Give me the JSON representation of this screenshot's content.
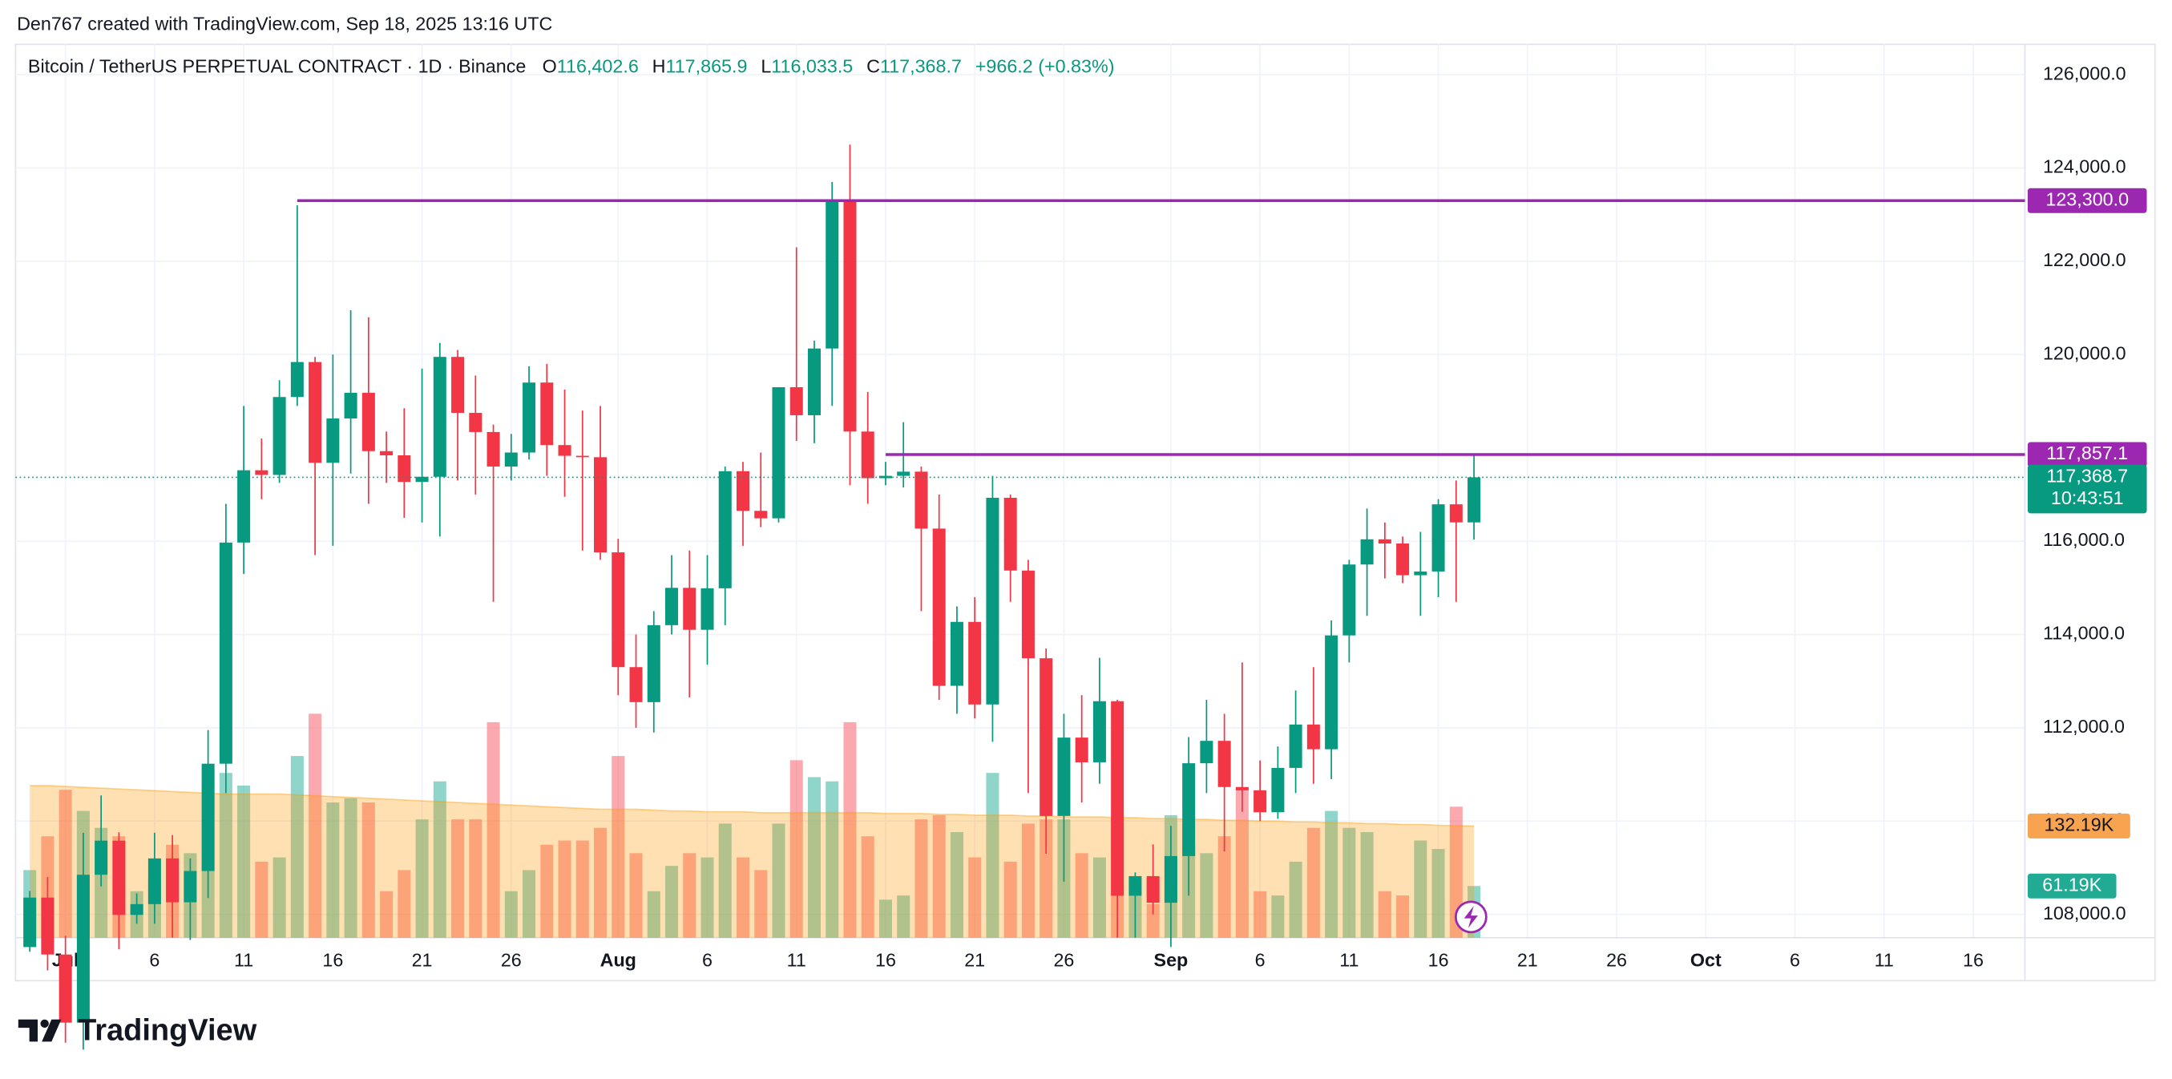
{
  "header": {
    "caption": "Den767 created with TradingView.com, Sep 18, 2025 13:16 UTC"
  },
  "legend": {
    "symbol": "Bitcoin / TetherUS PERPETUAL CONTRACT · 1D · Binance",
    "items": [
      {
        "key": "O",
        "value": "116,402.6"
      },
      {
        "key": "H",
        "value": "117,865.9"
      },
      {
        "key": "L",
        "value": "116,033.5"
      },
      {
        "key": "C",
        "value": "117,368.7"
      }
    ],
    "change": "+966.2 (+0.83%)"
  },
  "footer": {
    "brand": "TradingView"
  },
  "chart_data": {
    "type": "candlestick",
    "up_color": "#089981",
    "down_color": "#f23645",
    "x": [
      -1,
      0,
      1,
      2,
      3,
      4,
      5,
      6,
      7,
      8,
      9,
      10,
      11,
      12,
      13,
      14,
      15,
      16,
      17,
      18,
      19,
      20,
      21,
      22,
      23,
      24,
      25,
      26,
      27,
      28,
      29,
      30,
      31,
      32,
      33,
      34,
      35,
      36,
      37,
      38,
      39,
      40,
      41,
      42,
      43,
      44,
      45,
      46,
      47,
      48,
      49,
      50,
      51,
      52,
      53,
      54,
      55,
      56,
      57,
      58,
      59,
      60,
      61,
      62,
      63,
      64,
      65,
      66,
      67,
      68,
      69,
      70,
      71,
      72,
      73,
      74,
      75,
      76,
      77,
      78,
      79,
      80
    ],
    "open": [
      107300,
      108360,
      107140,
      105680,
      108850,
      109580,
      107990,
      108220,
      109200,
      108260,
      108930,
      111230,
      115970,
      117520,
      117420,
      119090,
      119840,
      117680,
      118630,
      119180,
      117930,
      117840,
      117270,
      117380,
      119950,
      118750,
      118340,
      117600,
      117900,
      119400,
      118060,
      117830,
      117800,
      115760,
      113300,
      112550,
      114200,
      115000,
      114100,
      114990,
      117500,
      116650,
      116490,
      119300,
      118700,
      120130,
      123300,
      118350,
      117350,
      117400,
      117490,
      116270,
      112900,
      114270,
      112500,
      116930,
      115370,
      113490,
      110110,
      111790,
      111260,
      112570,
      108400,
      108820,
      108250,
      109250,
      111240,
      111720,
      110730,
      110660,
      110190,
      111140,
      112070,
      111540,
      113980,
      115500,
      116040,
      115950,
      115270,
      115350,
      116790,
      116402.6
    ],
    "high": [
      108500,
      108800,
      107540,
      109750,
      110550,
      109760,
      108450,
      109750,
      109700,
      109200,
      111950,
      116800,
      118900,
      118200,
      119450,
      123200,
      119950,
      120000,
      120950,
      120800,
      118350,
      118850,
      119700,
      120250,
      120100,
      119550,
      118500,
      118300,
      119750,
      119800,
      119250,
      118800,
      118900,
      116050,
      114000,
      114500,
      115700,
      115800,
      115700,
      117600,
      117700,
      117900,
      119300,
      122300,
      120300,
      123700,
      124500,
      119200,
      117700,
      118550,
      117600,
      117000,
      114600,
      114800,
      117400,
      117000,
      115600,
      113700,
      112300,
      112700,
      113500,
      112600,
      108900,
      109500,
      109900,
      111800,
      112600,
      112300,
      113400,
      111300,
      111600,
      112800,
      113300,
      114300,
      115600,
      116700,
      116400,
      116100,
      116200,
      116900,
      117300,
      117865.9
    ],
    "low": [
      107200,
      106800,
      105250,
      105100,
      108600,
      107250,
      107800,
      107800,
      107500,
      107450,
      108350,
      110600,
      115300,
      116900,
      117250,
      118900,
      115700,
      115900,
      117450,
      116800,
      117250,
      116500,
      116400,
      116100,
      117300,
      117000,
      114700,
      117300,
      117750,
      117400,
      116950,
      115800,
      115600,
      112700,
      112000,
      111900,
      114000,
      112650,
      113350,
      114200,
      115900,
      116300,
      116400,
      118150,
      118100,
      118900,
      117200,
      116800,
      117200,
      117150,
      114500,
      112600,
      112300,
      112200,
      111700,
      114700,
      110600,
      109300,
      108700,
      110400,
      110800,
      107500,
      107500,
      108000,
      107300,
      108400,
      110600,
      109350,
      110200,
      110000,
      110050,
      110600,
      110800,
      110900,
      113400,
      114400,
      115200,
      115100,
      114400,
      114800,
      114700,
      116033.5
    ],
    "close": [
      108360,
      107140,
      105680,
      108850,
      109580,
      107990,
      108220,
      109200,
      108260,
      108930,
      111230,
      115970,
      117520,
      117420,
      119090,
      119840,
      117680,
      118630,
      119180,
      117930,
      117840,
      117270,
      117380,
      119950,
      118750,
      118340,
      117600,
      117900,
      119400,
      118060,
      117830,
      117800,
      115760,
      113300,
      112550,
      114200,
      115000,
      114100,
      114990,
      117500,
      116650,
      116490,
      119300,
      118700,
      120130,
      123300,
      118350,
      117350,
      117400,
      117490,
      116270,
      112900,
      114270,
      112500,
      116930,
      115370,
      113490,
      110110,
      111790,
      111260,
      112570,
      108400,
      108820,
      108250,
      109250,
      111240,
      111720,
      110730,
      110660,
      110190,
      111140,
      112070,
      111540,
      113980,
      115500,
      116040,
      115950,
      115270,
      115350,
      116790,
      116402.6,
      117368.7
    ],
    "volume": [
      80,
      120,
      175,
      150,
      130,
      120,
      55,
      70,
      110,
      100,
      200,
      195,
      180,
      90,
      95,
      215,
      265,
      160,
      165,
      160,
      55,
      80,
      140,
      185,
      140,
      140,
      255,
      55,
      80,
      110,
      115,
      115,
      130,
      215,
      100,
      55,
      85,
      100,
      95,
      135,
      95,
      80,
      135,
      210,
      190,
      185,
      255,
      120,
      45,
      50,
      140,
      145,
      125,
      95,
      195,
      90,
      135,
      140,
      140,
      100,
      95,
      145,
      50,
      40,
      145,
      110,
      100,
      120,
      175,
      55,
      50,
      90,
      130,
      150,
      130,
      125,
      55,
      50,
      115,
      105,
      155,
      61.19
    ],
    "volume_ma": [
      180,
      180,
      179,
      178,
      177,
      176,
      175,
      174,
      173,
      172,
      171,
      170,
      170,
      170,
      170,
      169,
      168,
      167,
      166,
      165,
      164,
      163,
      162,
      161,
      160,
      159,
      158,
      157,
      156,
      155,
      154,
      153,
      152,
      152,
      152,
      151,
      150,
      150,
      149,
      149,
      149,
      148,
      148,
      148,
      148,
      148,
      148,
      148,
      147,
      147,
      147,
      146,
      146,
      145,
      145,
      145,
      144,
      144,
      143,
      143,
      143,
      142,
      142,
      141,
      141,
      140,
      140,
      139,
      139,
      138,
      138,
      137,
      137,
      136,
      136,
      135,
      135,
      134,
      134,
      133,
      132.5,
      132.19
    ],
    "volume_label": "61.19K",
    "volume_ma_label": "132.19K",
    "volume_ylim": [
      0,
      1057
    ],
    "volume_up_color": "rgba(34,171,148,0.5)",
    "volume_down_color": "rgba(247,82,95,0.5)",
    "volume_ma_color": "#ff9800",
    "xlim": [
      -1.8,
      110.9
    ],
    "xticks": [
      {
        "value": 1,
        "label": "Jul"
      },
      6,
      11,
      16,
      21,
      26,
      {
        "value": 32,
        "label": "Aug"
      },
      {
        "value": 37,
        "label": "6"
      },
      {
        "value": 42,
        "label": "11"
      },
      {
        "value": 47,
        "label": "16"
      },
      {
        "value": 52,
        "label": "21"
      },
      {
        "value": 57,
        "label": "26"
      },
      {
        "value": 63,
        "label": "Sep"
      },
      {
        "value": 68,
        "label": "6"
      },
      {
        "value": 73,
        "label": "11"
      },
      {
        "value": 78,
        "label": "16"
      },
      {
        "value": 83,
        "label": "21"
      },
      {
        "value": 88,
        "label": "26"
      },
      {
        "value": 93,
        "label": "Oct"
      },
      {
        "value": 98,
        "label": "6"
      },
      {
        "value": 103,
        "label": "11"
      },
      {
        "value": 108,
        "label": "16"
      }
    ],
    "ylim": [
      107500,
      126650
    ],
    "yticks": [
      {
        "value": 108000,
        "label": "108,000.0"
      },
      {
        "value": 110000,
        "label": "110,000.0"
      },
      {
        "value": 112000,
        "label": "112,000.0"
      },
      {
        "value": 114000,
        "label": "114,000.0"
      },
      {
        "value": 116000,
        "label": "116,000.0"
      },
      {
        "value": 120000,
        "label": "120,000.0"
      },
      {
        "value": 122000,
        "label": "122,000.0"
      },
      {
        "value": 124000,
        "label": "124,000.0"
      },
      {
        "value": 126000,
        "label": "126,000.0"
      }
    ],
    "grid": true,
    "hlines": [
      {
        "value": 123300,
        "label": "123,300.0",
        "from": 14,
        "color": "#9c27b0"
      },
      {
        "value": 117857.1,
        "label": "117,857.1",
        "from": 47,
        "color": "#9c27b0"
      }
    ],
    "last_price": {
      "value": 117368.7,
      "label": "117,368.7",
      "countdown": "10:43:51",
      "color": "#089981"
    }
  }
}
